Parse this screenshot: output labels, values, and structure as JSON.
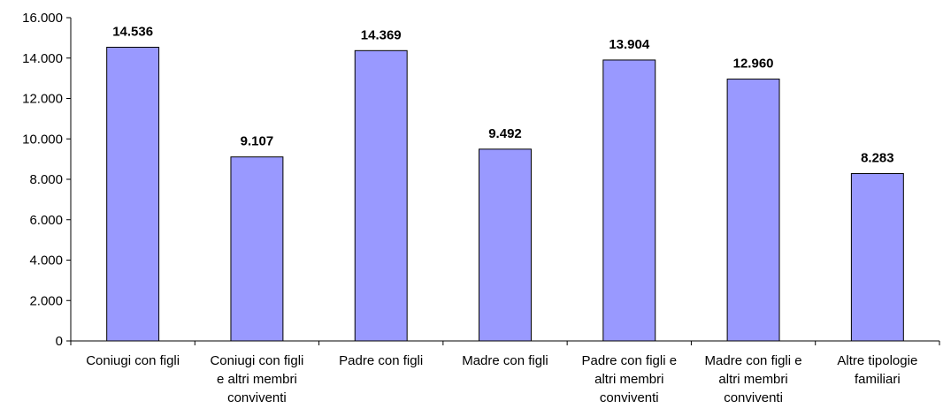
{
  "chart_data": {
    "type": "bar",
    "title": "",
    "xlabel": "",
    "ylabel": "",
    "ylim": [
      0,
      16000
    ],
    "yticks": [
      0,
      2000,
      4000,
      6000,
      8000,
      10000,
      12000,
      14000,
      16000
    ],
    "ytick_labels": [
      "0",
      "2.000",
      "4.000",
      "6.000",
      "8.000",
      "10.000",
      "12.000",
      "14.000",
      "16.000"
    ],
    "grid": false,
    "bar_color": "#9999ff",
    "categories": [
      [
        "Coniugi con figli"
      ],
      [
        "Coniugi con figli",
        "e altri membri",
        "conviventi"
      ],
      [
        "Padre con figli"
      ],
      [
        "Madre con figli"
      ],
      [
        "Padre con figli e",
        "altri membri",
        "conviventi"
      ],
      [
        "Madre con figli e",
        "altri membri",
        "conviventi"
      ],
      [
        "Altre tipologie",
        "familiari"
      ]
    ],
    "values": [
      14536,
      9107,
      14369,
      9492,
      13904,
      12960,
      8283
    ],
    "value_labels": [
      "14.536",
      "9.107",
      "14.369",
      "9.492",
      "13.904",
      "12.960",
      "8.283"
    ]
  }
}
